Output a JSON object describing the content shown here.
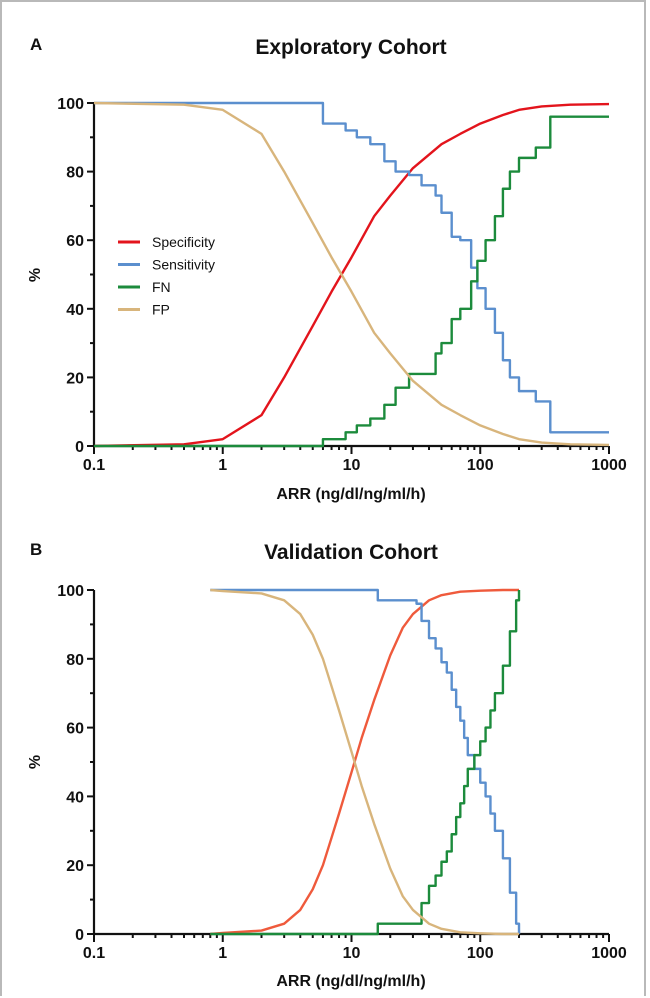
{
  "chart_data": [
    {
      "panel": "A",
      "type": "line",
      "title": "Exploratory Cohort",
      "xlabel": "ARR (ng/dl/ng/ml/h)",
      "ylabel": "%",
      "xscale": "log",
      "xlim": [
        0.1,
        1000
      ],
      "ylim": [
        0,
        100
      ],
      "xticks": [
        "0.1",
        "1",
        "10",
        "100",
        "1000"
      ],
      "yticks": [
        "0",
        "20",
        "40",
        "60",
        "80",
        "100"
      ],
      "legend_position": "left-middle",
      "series": [
        {
          "name": "Specificity",
          "color": "#e3141c",
          "step": false,
          "x": [
            0.1,
            0.5,
            1,
            2,
            3,
            5,
            7,
            10,
            15,
            20,
            30,
            50,
            70,
            100,
            150,
            200,
            300,
            500,
            1000
          ],
          "y": [
            0,
            0.5,
            2,
            9,
            20,
            35,
            45,
            55,
            67,
            73,
            81,
            88,
            91,
            94,
            96.5,
            98,
            99,
            99.5,
            99.7
          ]
        },
        {
          "name": "Sensitivity",
          "color": "#5b8fce",
          "step": true,
          "x": [
            0.1,
            4.5,
            6,
            9,
            11,
            14,
            18,
            22,
            28,
            35,
            45,
            50,
            60,
            70,
            85,
            95,
            110,
            130,
            150,
            170,
            200,
            270,
            350,
            1000
          ],
          "y": [
            100,
            100,
            94,
            92,
            90,
            88,
            83,
            80,
            79,
            76,
            73,
            68,
            61,
            60,
            52,
            46,
            40,
            33,
            25,
            20,
            16,
            13,
            4,
            4
          ]
        },
        {
          "name": "FN",
          "color": "#1c8b3c",
          "step": true,
          "x": [
            0.1,
            4.5,
            6,
            9,
            11,
            14,
            18,
            22,
            28,
            35,
            45,
            50,
            60,
            70,
            85,
            95,
            110,
            130,
            150,
            170,
            200,
            270,
            350,
            1000
          ],
          "y": [
            0,
            0,
            2,
            4,
            6,
            8,
            12,
            17,
            21,
            21,
            27,
            30,
            37,
            40,
            48,
            54,
            60,
            67,
            75,
            80,
            84,
            87,
            96,
            96
          ]
        },
        {
          "name": "FP",
          "color": "#d8b57c",
          "step": false,
          "x": [
            0.1,
            0.5,
            1,
            2,
            3,
            5,
            7,
            10,
            15,
            20,
            30,
            50,
            70,
            100,
            150,
            200,
            300,
            500,
            1000
          ],
          "y": [
            100,
            99.5,
            98,
            91,
            80,
            65,
            55,
            45,
            33,
            27,
            19,
            12,
            9,
            6,
            3.5,
            2,
            1,
            0.5,
            0.3
          ]
        }
      ]
    },
    {
      "panel": "B",
      "type": "line",
      "title": "Validation Cohort",
      "xlabel": "ARR (ng/dl/ng/ml/h)",
      "ylabel": "%",
      "xscale": "log",
      "xlim": [
        0.1,
        1000
      ],
      "ylim": [
        0,
        100
      ],
      "xticks": [
        "0.1",
        "1",
        "10",
        "100",
        "1000"
      ],
      "yticks": [
        "0",
        "20",
        "40",
        "60",
        "80",
        "100"
      ],
      "series": [
        {
          "name": "Specificity",
          "color": "#ef5a3c",
          "step": false,
          "x": [
            0.8,
            1,
            2,
            3,
            4,
            5,
            6,
            7,
            8,
            10,
            12,
            15,
            20,
            25,
            30,
            40,
            50,
            70,
            100,
            150,
            200
          ],
          "y": [
            0,
            0.3,
            1,
            3,
            7,
            13,
            20,
            28,
            35,
            47,
            57,
            68,
            81,
            89,
            93,
            97,
            98.5,
            99.5,
            99.8,
            100,
            100
          ]
        },
        {
          "name": "Sensitivity",
          "color": "#5b8fce",
          "step": true,
          "x": [
            0.8,
            16,
            32,
            35,
            40,
            45,
            50,
            55,
            60,
            65,
            70,
            75,
            80,
            90,
            100,
            110,
            120,
            130,
            150,
            170,
            190,
            200
          ],
          "y": [
            100,
            97,
            96,
            91,
            86,
            83,
            79,
            76,
            71,
            66,
            62,
            57,
            52,
            48,
            44,
            40,
            35,
            30,
            22,
            12,
            3,
            0
          ]
        },
        {
          "name": "FN",
          "color": "#1c8b3c",
          "step": true,
          "x": [
            0.8,
            16,
            32,
            35,
            40,
            45,
            50,
            55,
            60,
            65,
            70,
            75,
            80,
            90,
            100,
            110,
            120,
            130,
            150,
            170,
            190,
            200
          ],
          "y": [
            0,
            3,
            3,
            9,
            14,
            17,
            21,
            24,
            29,
            34,
            38,
            43,
            48,
            52,
            56,
            60,
            65,
            70,
            78,
            88,
            97,
            100
          ]
        },
        {
          "name": "FP",
          "color": "#d8b57c",
          "step": false,
          "x": [
            0.8,
            1,
            2,
            3,
            4,
            5,
            6,
            7,
            8,
            10,
            12,
            15,
            20,
            25,
            30,
            40,
            50,
            70,
            100,
            150,
            200
          ],
          "y": [
            100,
            99.7,
            99,
            97,
            93,
            87,
            80,
            72,
            65,
            53,
            43,
            32,
            19,
            11,
            7,
            3,
            1.5,
            0.5,
            0.2,
            0,
            0
          ]
        }
      ]
    }
  ]
}
